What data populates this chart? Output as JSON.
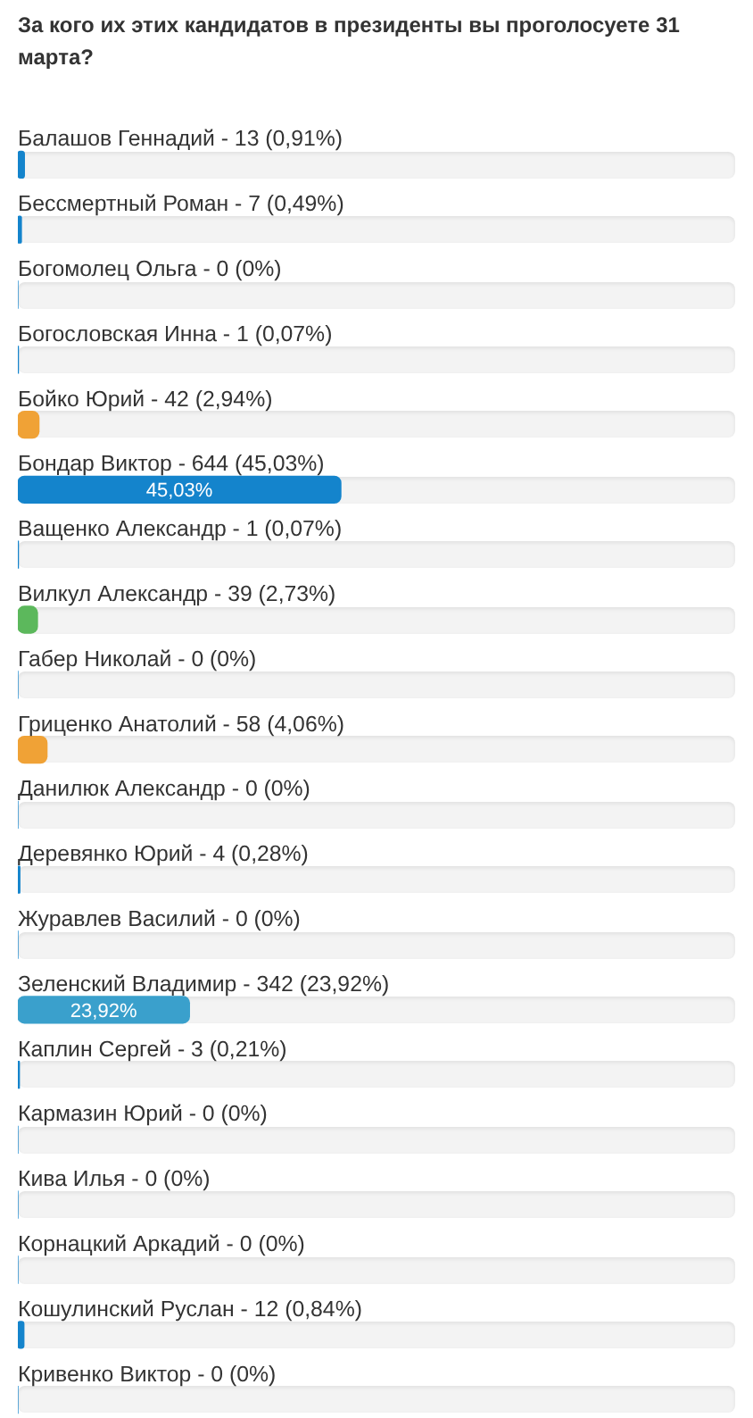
{
  "chart_data": {
    "type": "bar",
    "orientation": "horizontal",
    "title": "За кого их этих кандидатов в президенты вы проголосуете 31 марта?",
    "categories": [
      "Балашов Геннадий - 13 (0,91%)",
      "Бессмертный Роман - 7 (0,49%)",
      "Богомолец Ольга - 0 (0%)",
      "Богословская Инна - 1 (0,07%)",
      "Бойко Юрий - 42 (2,94%)",
      "Бондар Виктор - 644 (45,03%)",
      "Ващенко Александр - 1 (0,07%)",
      "Вилкул Александр - 39 (2,73%)",
      "Габер Николай - 0 (0%)",
      "Гриценко Анатолий - 58 (4,06%)",
      "Данилюк Александр - 0 (0%)",
      "Деревянко Юрий - 4 (0,28%)",
      "Журавлев Василий - 0 (0%)",
      "Зеленский Владимир - 342 (23,92%)",
      "Каплин Сергей - 3 (0,21%)",
      "Кармазин Юрий - 0 (0%)",
      "Кива Илья - 0 (0%)",
      "Корнацкий Аркадий - 0 (0%)",
      "Кошулинский Руслан - 12 (0,84%)",
      "Кривенко Виктор - 0 (0%)"
    ],
    "values": [
      0.91,
      0.49,
      0,
      0.07,
      2.94,
      45.03,
      0.07,
      2.73,
      0,
      4.06,
      0,
      0.28,
      0,
      23.92,
      0.21,
      0,
      0,
      0,
      0.84,
      0
    ],
    "colors": [
      "#1484cc",
      "#1484cc",
      "#1484cc",
      "#1484cc",
      "#f0a236",
      "#1484cc",
      "#1484cc",
      "#5cb85c",
      "#1484cc",
      "#f0a236",
      "#1484cc",
      "#1484cc",
      "#1484cc",
      "#3aa0cc",
      "#1484cc",
      "#1484cc",
      "#1484cc",
      "#1484cc",
      "#1484cc",
      "#1484cc"
    ],
    "value_labels": [
      null,
      null,
      null,
      null,
      null,
      "45,03%",
      null,
      null,
      null,
      null,
      null,
      null,
      null,
      "23,92%",
      null,
      null,
      null,
      null,
      null,
      null
    ],
    "xlim": [
      0,
      100
    ]
  }
}
